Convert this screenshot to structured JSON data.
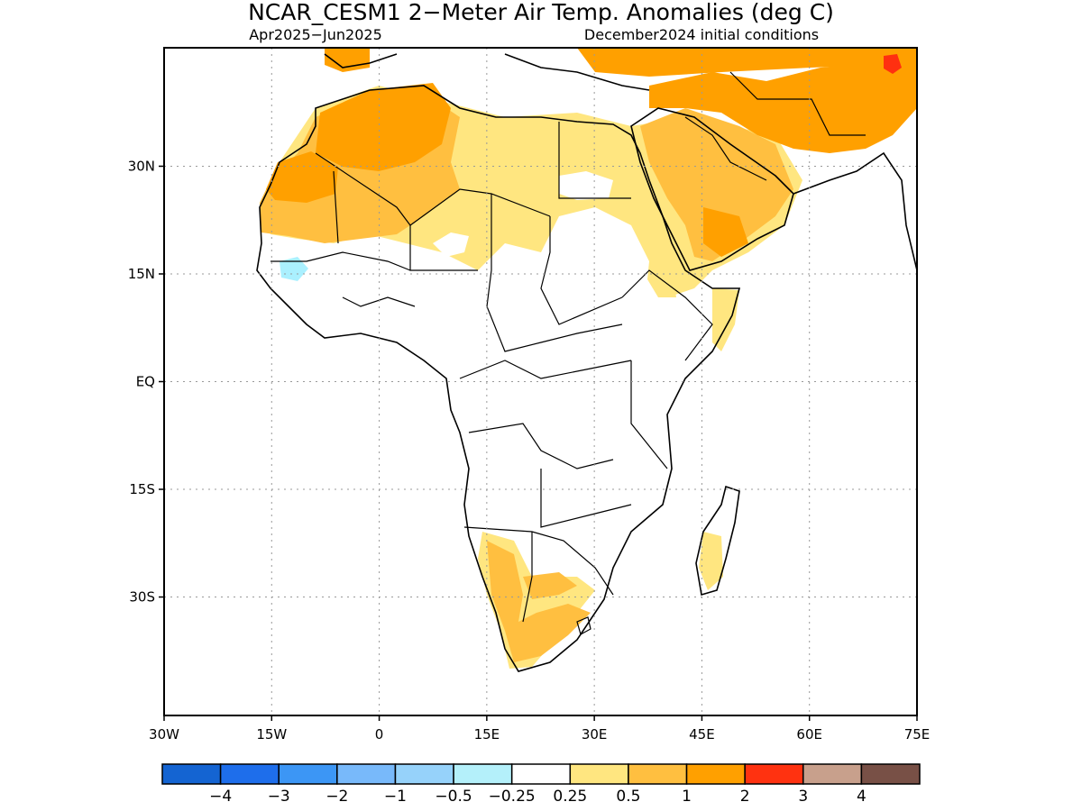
{
  "title": "NCAR_CESM1 2−Meter Air Temp. Anomalies (deg C)",
  "subtitle_left": "Apr2025−Jun2025",
  "subtitle_right": "December2024 initial conditions",
  "map": {
    "lon_range": [
      -30,
      75
    ],
    "lat_range": [
      -46.5,
      46.5
    ],
    "lon_ticks": [
      {
        "value": -30,
        "label": "30W"
      },
      {
        "value": -15,
        "label": "15W"
      },
      {
        "value": 0,
        "label": "0"
      },
      {
        "value": 15,
        "label": "15E"
      },
      {
        "value": 30,
        "label": "30E"
      },
      {
        "value": 45,
        "label": "45E"
      },
      {
        "value": 60,
        "label": "60E"
      },
      {
        "value": 75,
        "label": "75E"
      }
    ],
    "lat_ticks": [
      {
        "value": 30,
        "label": "30N"
      },
      {
        "value": 15,
        "label": "15N"
      },
      {
        "value": 0,
        "label": "EQ"
      },
      {
        "value": -15,
        "label": "15S"
      },
      {
        "value": -30,
        "label": "30S"
      }
    ],
    "grid": "dotted",
    "colors": {
      "light_yellow": "#ffe680",
      "light_orange": "#ffbf40",
      "orange": "#ffa000",
      "red": "#ff3010",
      "light_blue": "#aaf0ff",
      "coast": "#000000"
    }
  },
  "colorbar": {
    "colors": [
      "#1464d2",
      "#1e6eeb",
      "#3c96f5",
      "#78b9fa",
      "#96d2fa",
      "#b4f0fa",
      "#ffffff",
      "#ffe680",
      "#ffbf40",
      "#ffa000",
      "#ff3210",
      "#c8a08c",
      "#785046"
    ],
    "labels": [
      "−4",
      "−3",
      "−2",
      "−1",
      "−0.5",
      "−0.25",
      "0.25",
      "0.5",
      "1",
      "2",
      "3",
      "4"
    ]
  }
}
